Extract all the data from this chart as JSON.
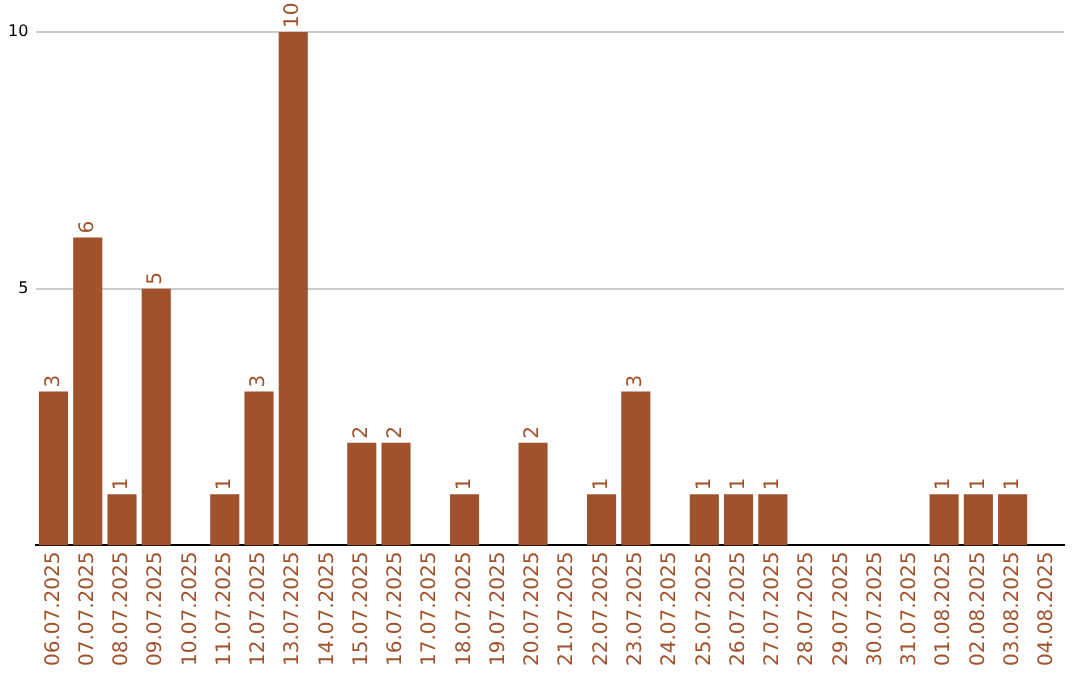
{
  "chart_data": {
    "type": "bar",
    "categories": [
      "06.07.2025",
      "07.07.2025",
      "08.07.2025",
      "09.07.2025",
      "10.07.2025",
      "11.07.2025",
      "12.07.2025",
      "13.07.2025",
      "14.07.2025",
      "15.07.2025",
      "16.07.2025",
      "17.07.2025",
      "18.07.2025",
      "19.07.2025",
      "20.07.2025",
      "21.07.2025",
      "22.07.2025",
      "23.07.2025",
      "24.07.2025",
      "25.07.2025",
      "26.07.2025",
      "27.07.2025",
      "28.07.2025",
      "29.07.2025",
      "30.07.2025",
      "31.07.2025",
      "01.08.2025",
      "02.08.2025",
      "03.08.2025",
      "04.08.2025"
    ],
    "values": [
      3,
      6,
      1,
      5,
      0,
      1,
      3,
      10,
      0,
      2,
      2,
      0,
      1,
      0,
      2,
      0,
      1,
      3,
      0,
      1,
      1,
      1,
      0,
      0,
      0,
      0,
      1,
      1,
      1,
      0
    ],
    "value_labels": [
      "3",
      "6",
      "1",
      "5",
      null,
      "1",
      "3",
      "10",
      null,
      "2",
      "2",
      null,
      "1",
      null,
      "2",
      null,
      "1",
      "3",
      null,
      "1",
      "1",
      "1",
      null,
      null,
      null,
      null,
      "1",
      "1",
      "1",
      null
    ],
    "color": "#a0522d",
    "ylim": [
      0,
      10
    ],
    "yticks": [
      5,
      10
    ],
    "grid": "y"
  }
}
